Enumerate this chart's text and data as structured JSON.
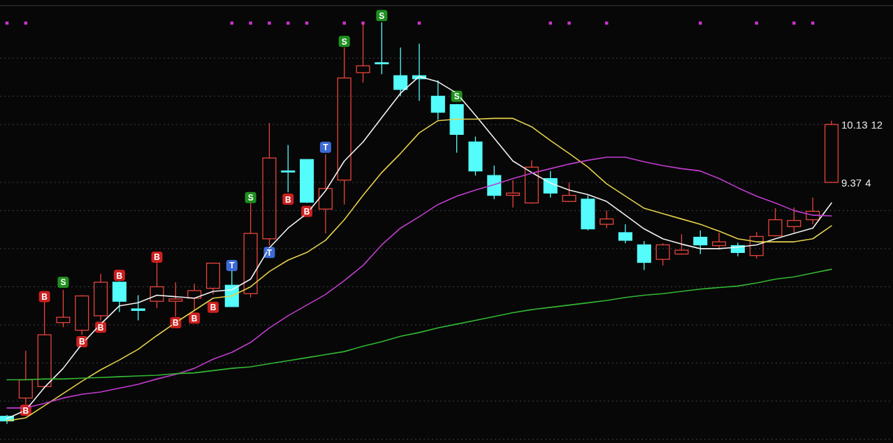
{
  "chart_data": {
    "type": "candlestick",
    "categories": [
      null,
      null,
      null,
      null,
      null,
      null,
      null,
      null,
      null,
      null,
      null,
      null,
      null,
      null,
      null,
      null,
      null,
      null,
      null,
      null,
      null,
      null,
      null,
      null,
      null,
      null,
      null,
      null,
      null,
      null,
      null,
      null,
      null,
      null,
      null,
      null,
      null,
      null,
      null,
      null,
      null,
      null,
      null,
      null,
      null
    ],
    "ohlc": [
      [
        6.3,
        6.32,
        6.2,
        6.24
      ],
      [
        6.54,
        7.16,
        6.46,
        6.78
      ],
      [
        6.69,
        7.8,
        6.67,
        7.37
      ],
      [
        7.53,
        7.96,
        7.47,
        7.6
      ],
      [
        7.43,
        7.89,
        7.37,
        7.88
      ],
      [
        7.62,
        8.17,
        7.56,
        8.06
      ],
      [
        8.06,
        8.07,
        7.67,
        7.81
      ],
      [
        7.71,
        7.89,
        7.56,
        7.69
      ],
      [
        7.81,
        8.32,
        7.72,
        8.0
      ],
      [
        7.81,
        8.06,
        7.61,
        7.84
      ],
      [
        7.85,
        8.04,
        7.69,
        7.95
      ],
      [
        7.98,
        8.31,
        7.9,
        8.31
      ],
      [
        8.02,
        8.21,
        7.74,
        7.74
      ],
      [
        7.91,
        9.1,
        7.86,
        8.7
      ],
      [
        8.63,
        10.15,
        8.54,
        9.69
      ],
      [
        9.52,
        9.86,
        9.24,
        9.51
      ],
      [
        9.67,
        9.67,
        9.1,
        9.11
      ],
      [
        9.02,
        9.74,
        8.7,
        9.29
      ],
      [
        9.4,
        11.14,
        9.08,
        10.74
      ],
      [
        10.81,
        11.45,
        10.68,
        10.9
      ],
      [
        10.94,
        11.47,
        10.79,
        10.93
      ],
      [
        10.77,
        11.14,
        10.5,
        10.59
      ],
      [
        10.77,
        11.19,
        10.44,
        10.73
      ],
      [
        10.5,
        10.71,
        10.19,
        10.29
      ],
      [
        10.39,
        10.4,
        9.76,
        10.0
      ],
      [
        9.9,
        9.97,
        9.46,
        9.52
      ],
      [
        9.46,
        9.59,
        9.15,
        9.2
      ],
      [
        9.2,
        9.4,
        9.04,
        9.23
      ],
      [
        9.1,
        9.66,
        9.09,
        9.57
      ],
      [
        9.42,
        9.52,
        9.17,
        9.23
      ],
      [
        9.12,
        9.37,
        9.11,
        9.2
      ],
      [
        9.15,
        9.2,
        8.74,
        8.76
      ],
      [
        8.82,
        9.0,
        8.77,
        8.89
      ],
      [
        8.71,
        8.82,
        8.57,
        8.61
      ],
      [
        8.55,
        8.6,
        8.22,
        8.32
      ],
      [
        8.36,
        8.57,
        8.28,
        8.55
      ],
      [
        8.43,
        8.69,
        8.42,
        8.48
      ],
      [
        8.65,
        8.74,
        8.43,
        8.55
      ],
      [
        8.54,
        8.71,
        8.49,
        8.59
      ],
      [
        8.54,
        8.58,
        8.4,
        8.45
      ],
      [
        8.41,
        8.72,
        8.37,
        8.66
      ],
      [
        8.67,
        9.03,
        8.66,
        8.88
      ],
      [
        8.79,
        9.04,
        8.71,
        8.87
      ],
      [
        8.88,
        9.17,
        8.82,
        8.99
      ],
      [
        9.37,
        10.18,
        9.37,
        10.13
      ]
    ],
    "colors": [
      "#54fcfc",
      "#e8453c",
      "#e8453c",
      "#e8453c",
      "#e8453c",
      "#e8453c",
      "#54fcfc",
      "#54fcfc",
      "#e8453c",
      "#e8453c",
      "#e8453c",
      "#e8453c",
      "#54fcfc",
      "#e8453c",
      "#e8453c",
      "#54fcfc",
      "#54fcfc",
      "#e8453c",
      "#e8453c",
      "#e8453c",
      "#54fcfc",
      "#54fcfc",
      "#54fcfc",
      "#54fcfc",
      "#54fcfc",
      "#54fcfc",
      "#54fcfc",
      "#e8453c",
      "#e8453c",
      "#54fcfc",
      "#e8453c",
      "#54fcfc",
      "#e8453c",
      "#54fcfc",
      "#54fcfc",
      "#e8453c",
      "#e8453c",
      "#54fcfc",
      "#e8453c",
      "#54fcfc",
      "#e8453c",
      "#e8453c",
      "#e8453c",
      "#e8453c",
      "#e8453c"
    ],
    "ylim": [
      5.95,
      11.69
    ],
    "yticks": [
      {
        "value": 11,
        "label": null
      },
      {
        "value": 10.5,
        "label": null
      },
      10.13,
      9.37,
      {
        "value": 9,
        "label": null
      },
      {
        "value": 8.5,
        "label": null
      },
      {
        "value": 8,
        "label": null
      },
      {
        "value": 7.5,
        "label": null
      },
      {
        "value": 7,
        "label": null
      },
      {
        "value": 6.5,
        "label": null
      },
      {
        "value": 6,
        "label": null
      }
    ],
    "grid": "y",
    "tick_labels": "y",
    "annotations": [
      "12",
      "4"
    ],
    "series": [
      {
        "type": "line",
        "color": "#f2f2f2",
        "values": [
          6.27,
          6.38,
          6.68,
          6.93,
          7.25,
          7.51,
          7.75,
          7.79,
          7.89,
          7.87,
          7.85,
          7.94,
          7.96,
          8.1,
          8.51,
          8.77,
          8.96,
          9.26,
          9.65,
          9.9,
          10.22,
          10.54,
          10.76,
          10.69,
          10.54,
          10.25,
          9.95,
          9.65,
          9.5,
          9.36,
          9.27,
          9.21,
          9.12,
          8.94,
          8.76,
          8.63,
          8.56,
          8.5,
          8.5,
          8.52,
          8.55,
          8.63,
          8.7,
          8.77,
          9.1
        ]
      },
      {
        "type": "line",
        "color": "#e6d04a",
        "values": [
          6.24,
          6.28,
          6.44,
          6.6,
          6.76,
          6.91,
          7.04,
          7.18,
          7.36,
          7.53,
          7.69,
          7.85,
          7.88,
          8.0,
          8.2,
          8.35,
          8.45,
          8.61,
          8.88,
          9.2,
          9.5,
          9.75,
          10.02,
          10.18,
          10.2,
          10.2,
          10.21,
          10.21,
          10.1,
          9.92,
          9.75,
          9.57,
          9.35,
          9.19,
          9.03,
          8.96,
          8.89,
          8.82,
          8.73,
          8.63,
          8.59,
          8.59,
          8.59,
          8.63,
          8.8
        ]
      },
      {
        "type": "line",
        "color": "#c23ccf",
        "values": [
          6.41,
          6.41,
          6.47,
          6.54,
          6.59,
          6.62,
          6.67,
          6.72,
          6.79,
          6.85,
          6.93,
          7.05,
          7.14,
          7.27,
          7.46,
          7.62,
          7.76,
          7.9,
          8.08,
          8.28,
          8.55,
          8.77,
          8.92,
          9.08,
          9.19,
          9.27,
          9.34,
          9.42,
          9.49,
          9.55,
          9.61,
          9.66,
          9.7,
          9.7,
          9.64,
          9.59,
          9.55,
          9.52,
          9.42,
          9.3,
          9.19,
          9.1,
          9.0,
          8.94,
          8.93
        ]
      },
      {
        "type": "line",
        "color": "#34b834",
        "values": [
          6.78,
          6.78,
          6.79,
          6.79,
          6.8,
          6.81,
          6.82,
          6.83,
          6.84,
          6.86,
          6.87,
          6.9,
          6.93,
          6.95,
          6.99,
          7.03,
          7.07,
          7.11,
          7.15,
          7.22,
          7.28,
          7.35,
          7.4,
          7.46,
          7.51,
          7.56,
          7.61,
          7.66,
          7.7,
          7.73,
          7.76,
          7.79,
          7.82,
          7.86,
          7.89,
          7.91,
          7.94,
          7.97,
          7.99,
          8.01,
          8.05,
          8.1,
          8.13,
          8.18,
          8.23
        ]
      },
      {
        "type": "scatter",
        "color": "#d030d0",
        "marker": "square",
        "values": [
          11.46,
          11.46,
          null,
          null,
          null,
          null,
          null,
          null,
          null,
          null,
          null,
          null,
          11.46,
          11.46,
          11.46,
          11.46,
          11.46,
          null,
          11.46,
          11.46,
          null,
          null,
          11.46,
          null,
          null,
          null,
          null,
          null,
          null,
          11.46,
          11.46,
          null,
          11.46,
          null,
          null,
          null,
          null,
          11.46,
          null,
          null,
          11.46,
          null,
          11.46,
          11.46,
          null
        ]
      },
      {
        "type": "scatter",
        "color": "#cc2020",
        "marker": "square",
        "values": [
          null,
          6.38,
          7.87,
          null,
          7.28,
          7.47,
          8.15,
          null,
          8.39,
          7.53,
          7.59,
          7.73,
          null,
          null,
          null,
          9.15,
          8.99,
          null,
          null,
          null,
          null,
          null,
          null,
          null,
          null,
          null,
          null,
          null,
          null,
          null,
          null,
          null,
          null,
          null,
          null,
          null,
          null,
          null,
          null,
          null,
          null,
          null,
          null,
          null,
          null
        ],
        "value_labels": [
          null,
          "B",
          "B",
          null,
          "B",
          "B",
          "B",
          null,
          "B",
          "B",
          "B",
          "B",
          null,
          null,
          null,
          "B",
          "B",
          null,
          null,
          null,
          null,
          null,
          null,
          null,
          null,
          null,
          null,
          null,
          null,
          null,
          null,
          null,
          null,
          null,
          null,
          null,
          null,
          null,
          null,
          null,
          null,
          null,
          null,
          null,
          null
        ]
      },
      {
        "type": "scatter",
        "color": "#1f8f1f",
        "marker": "square",
        "values": [
          null,
          null,
          null,
          8.06,
          null,
          null,
          null,
          null,
          null,
          null,
          null,
          null,
          null,
          9.17,
          null,
          null,
          null,
          null,
          11.22,
          null,
          11.56,
          null,
          null,
          null,
          10.5,
          null,
          null,
          null,
          null,
          null,
          null,
          null,
          null,
          null,
          null,
          null,
          null,
          null,
          null,
          null,
          null,
          null,
          null,
          null,
          null
        ],
        "value_labels": [
          null,
          null,
          null,
          "S",
          null,
          null,
          null,
          null,
          null,
          null,
          null,
          null,
          null,
          "S",
          null,
          null,
          null,
          null,
          "S",
          null,
          "S",
          null,
          null,
          null,
          "S",
          null,
          null,
          null,
          null,
          null,
          null,
          null,
          null,
          null,
          null,
          null,
          null,
          null,
          null,
          null,
          null,
          null,
          null,
          null,
          null
        ]
      },
      {
        "type": "scatter",
        "color": "#3d6ad6",
        "marker": "square",
        "values": [
          null,
          null,
          null,
          null,
          null,
          null,
          null,
          null,
          null,
          null,
          null,
          null,
          8.28,
          null,
          8.45,
          null,
          null,
          9.83,
          null,
          null,
          null,
          null,
          null,
          null,
          null,
          null,
          null,
          null,
          null,
          null,
          null,
          null,
          null,
          null,
          null,
          null,
          null,
          null,
          null,
          null,
          null,
          null,
          null,
          null,
          null
        ],
        "value_labels": [
          null,
          null,
          null,
          null,
          null,
          null,
          null,
          null,
          null,
          null,
          null,
          null,
          "T",
          null,
          "T",
          null,
          null,
          "T",
          null,
          null,
          null,
          null,
          null,
          null,
          null,
          null,
          null,
          null,
          null,
          null,
          null,
          null,
          null,
          null,
          null,
          null,
          null,
          null,
          null,
          null,
          null,
          null,
          null,
          null,
          null
        ]
      }
    ]
  }
}
